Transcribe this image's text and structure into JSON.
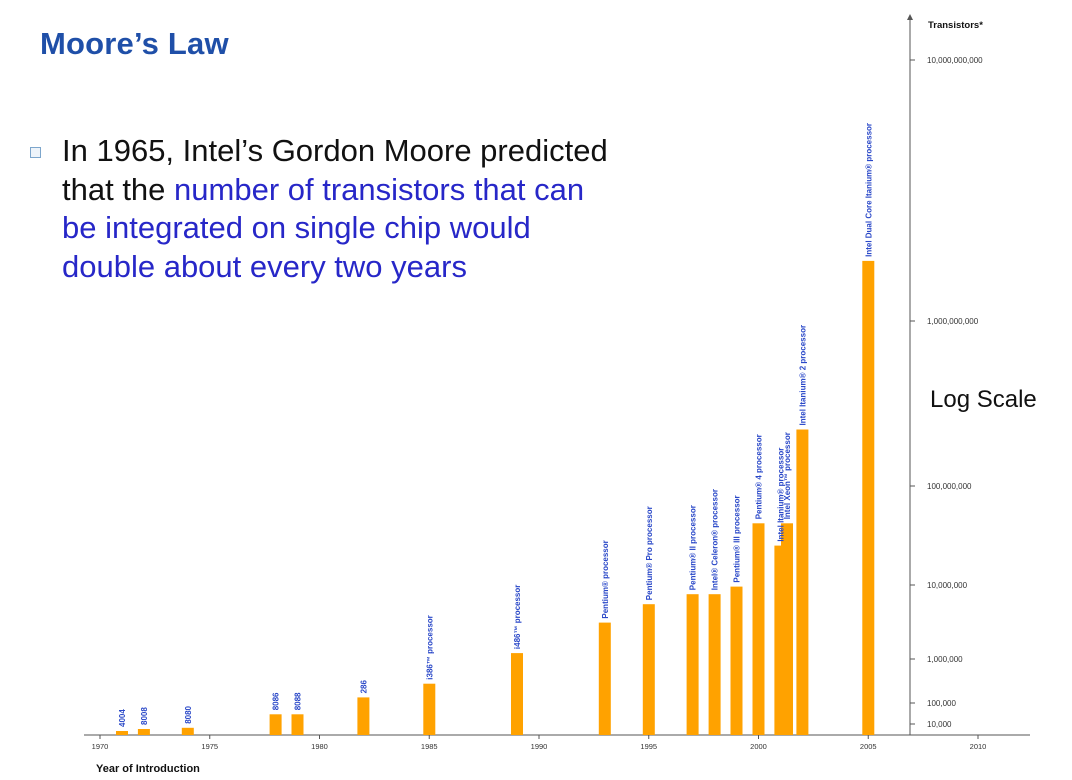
{
  "slide": {
    "title": "Moore’s Law",
    "bullet_plain": "In 1965, Intel’s Gordon Moore predicted that the ",
    "bullet_highlight": "number of transistors that can be integrated on single chip would double about every two years",
    "bullet_icon": "square-bullet-icon",
    "highlight_color": "#2727c8",
    "title_color": "#1f4fa8"
  },
  "annotation": {
    "text": "Log Scale"
  },
  "chart_data": {
    "type": "bar",
    "xlabel": "Year of Introduction",
    "ylabel": "Transistors*",
    "x_range": [
      1970,
      2010
    ],
    "x_ticks": [
      "1970",
      "1975",
      "1980",
      "1985",
      "1990",
      "1995",
      "2000",
      "2005",
      "2010"
    ],
    "y_scale": "log",
    "y_ticks": [
      "10,000",
      "100,000",
      "1,000,000",
      "10,000,000",
      "100,000,000",
      "1,000,000,000",
      "10,000,000,000"
    ],
    "bar_color": "#ffa200",
    "label_color": "#2a48c8",
    "grid": false,
    "bars": [
      {
        "label": "4004",
        "year": 1971,
        "transistors": 2300
      },
      {
        "label": "8008",
        "year": 1972,
        "transistors": 3500
      },
      {
        "label": "8080",
        "year": 1974,
        "transistors": 4500
      },
      {
        "label": "8086",
        "year": 1978,
        "transistors": 29000
      },
      {
        "label": "8088",
        "year": 1979,
        "transistors": 29000
      },
      {
        "label": "286",
        "year": 1982,
        "transistors": 134000
      },
      {
        "label": "i386™ processor",
        "year": 1985,
        "transistors": 275000
      },
      {
        "label": "i486™ processor",
        "year": 1989,
        "transistors": 1200000
      },
      {
        "label": "Pentium® processor",
        "year": 1993,
        "transistors": 3100000
      },
      {
        "label": "Pentium® Pro processor",
        "year": 1995,
        "transistors": 5500000
      },
      {
        "label": "Pentium® II processor",
        "year": 1997,
        "transistors": 7500000
      },
      {
        "label": "Intel® Celeron® processor",
        "year": 1998,
        "transistors": 7500000
      },
      {
        "label": "Pentium® III processor",
        "year": 1999,
        "transistors": 9500000
      },
      {
        "label": "Pentium® 4 processor",
        "year": 2000,
        "transistors": 42000000
      },
      {
        "label": "Intel Itanium® processor",
        "year": 2001,
        "transistors": 25000000
      },
      {
        "label": "Intel Xeon™ processor",
        "year": 2001.3,
        "transistors": 42000000
      },
      {
        "label": "Intel Itanium® 2 processor",
        "year": 2002,
        "transistors": 220000000
      },
      {
        "label": "Intel Dual Core Itanium® processor",
        "year": 2005,
        "transistors": 1700000000
      }
    ]
  }
}
